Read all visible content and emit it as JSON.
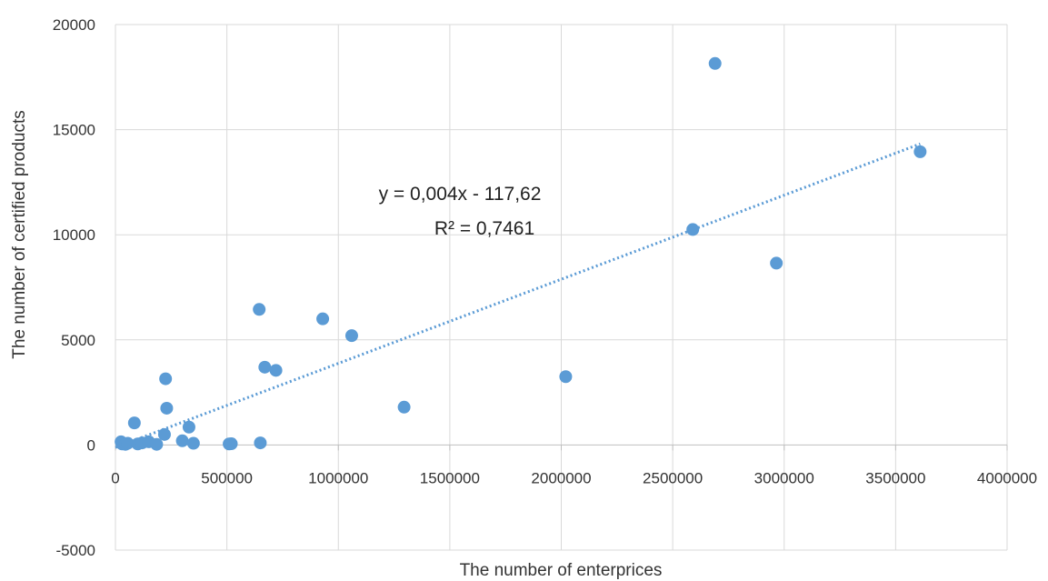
{
  "chart_data": {
    "type": "scatter",
    "xlabel": "The number of enterprices",
    "ylabel": "The number of certified products",
    "xlim": [
      0,
      4000000
    ],
    "ylim": [
      -5000,
      20000
    ],
    "x_ticks": [
      "0",
      "500000",
      "1000000",
      "1500000",
      "2000000",
      "2500000",
      "3000000",
      "3500000",
      "4000000"
    ],
    "y_ticks": [
      "-5000",
      "0",
      "5000",
      "10000",
      "15000",
      "20000"
    ],
    "grid": true,
    "legend": "none",
    "trendline": {
      "type": "linear",
      "slope": 0.004,
      "intercept": -117.62,
      "x_range": [
        0,
        3610000
      ],
      "equation": "y = 0,004x - 117,62",
      "r_squared": "R² = 0,7461",
      "style": "dotted"
    },
    "series": [
      {
        "color": "#5b9bd5",
        "points": [
          [
            25000,
            150
          ],
          [
            30000,
            50
          ],
          [
            45000,
            30
          ],
          [
            55000,
            80
          ],
          [
            85000,
            1050
          ],
          [
            100000,
            50
          ],
          [
            120000,
            100
          ],
          [
            150000,
            150
          ],
          [
            185000,
            30
          ],
          [
            220000,
            500
          ],
          [
            225000,
            3150
          ],
          [
            230000,
            1750
          ],
          [
            300000,
            200
          ],
          [
            330000,
            850
          ],
          [
            350000,
            80
          ],
          [
            510000,
            50
          ],
          [
            520000,
            60
          ],
          [
            645000,
            6450
          ],
          [
            650000,
            100
          ],
          [
            670000,
            3700
          ],
          [
            720000,
            3550
          ],
          [
            930000,
            6000
          ],
          [
            1060000,
            5200
          ],
          [
            1295000,
            1800
          ],
          [
            2020000,
            3250
          ],
          [
            2590000,
            10250
          ],
          [
            2690000,
            18150
          ],
          [
            2965000,
            8650
          ],
          [
            3610000,
            13950
          ]
        ]
      }
    ]
  }
}
